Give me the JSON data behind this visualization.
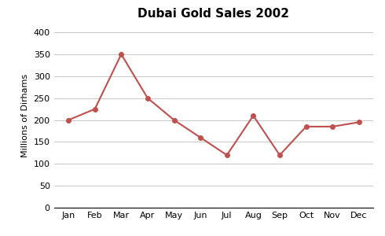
{
  "title": "Dubai Gold Sales 2002",
  "ylabel": "Millions of Dirhams",
  "months": [
    "Jan",
    "Feb",
    "Mar",
    "Apr",
    "May",
    "Jun",
    "Jul",
    "Aug",
    "Sep",
    "Oct",
    "Nov",
    "Dec"
  ],
  "values": [
    200,
    225,
    350,
    250,
    200,
    160,
    120,
    210,
    120,
    185,
    185,
    195
  ],
  "line_color": "#C0504D",
  "marker": "o",
  "marker_size": 4,
  "ylim": [
    0,
    420
  ],
  "yticks": [
    0,
    50,
    100,
    150,
    200,
    250,
    300,
    350,
    400
  ],
  "grid_color": "#cccccc",
  "background_color": "#ffffff",
  "title_fontsize": 11,
  "label_fontsize": 8,
  "tick_fontsize": 8
}
